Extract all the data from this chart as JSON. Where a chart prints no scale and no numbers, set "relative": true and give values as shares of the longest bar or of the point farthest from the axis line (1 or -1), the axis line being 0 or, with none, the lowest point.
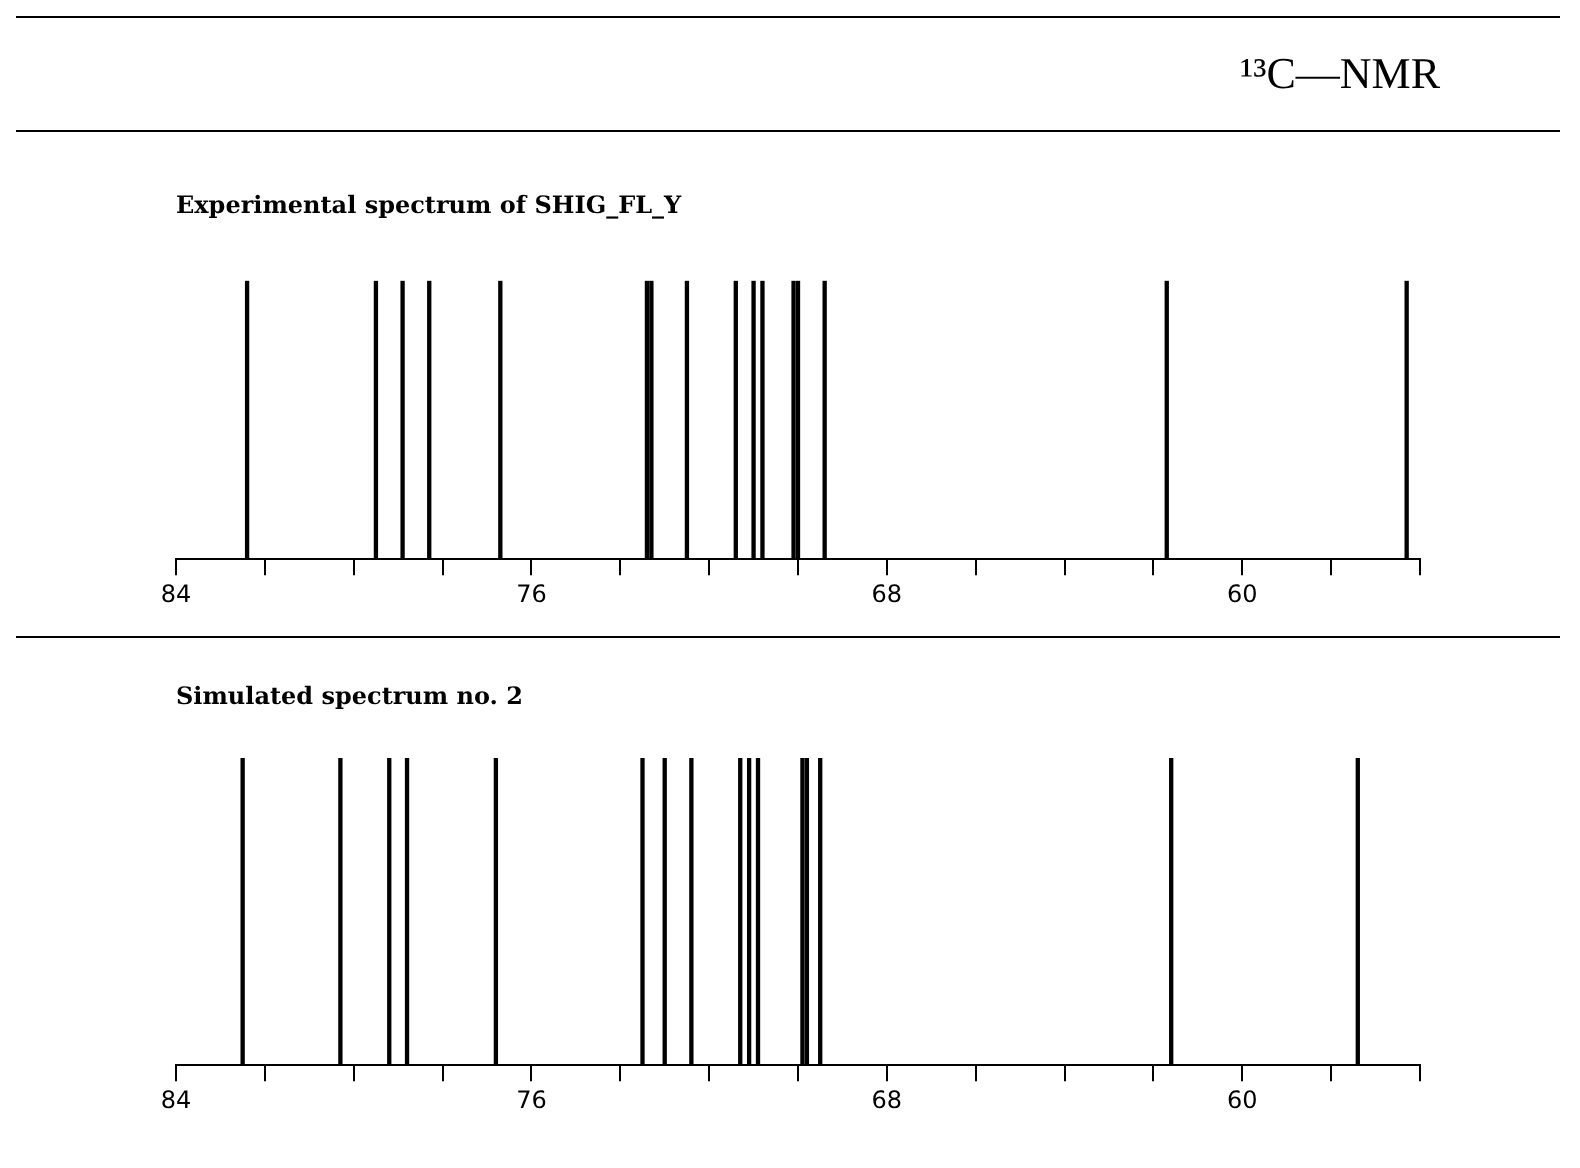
{
  "chart_data": [
    {
      "type": "bar",
      "title": "¹³C—NMR",
      "subtitle": "Experimental spectrum of SHIG_FL_Y",
      "relative": true,
      "color": "#000000",
      "grid": false,
      "legend": false,
      "tick_labels": "x",
      "x": [
        82.4,
        79.5,
        78.9,
        78.3,
        76.7,
        73.4,
        73.3,
        72.5,
        71.4,
        71.0,
        70.8,
        70.1,
        70.0,
        69.4,
        61.7,
        56.3
      ],
      "values": [
        1,
        1,
        1,
        1,
        1,
        1,
        1,
        1,
        1,
        1,
        1,
        1,
        1,
        1,
        1,
        1
      ],
      "xlim": [
        84,
        56
      ],
      "xticks": [
        84,
        {
          "value": 82,
          "label": null
        },
        {
          "value": 80,
          "label": null
        },
        {
          "value": 78,
          "label": null
        },
        76,
        {
          "value": 74,
          "label": null
        },
        {
          "value": 72,
          "label": null
        },
        {
          "value": 70,
          "label": null
        },
        68,
        {
          "value": 66,
          "label": null
        },
        {
          "value": 64,
          "label": null
        },
        {
          "value": 62,
          "label": null
        },
        60,
        {
          "value": 58,
          "label": null
        },
        {
          "value": 56,
          "label": null
        }
      ]
    },
    {
      "type": "bar",
      "title": "Simulated spectrum no. 2",
      "relative": true,
      "color": "#000000",
      "grid": false,
      "legend": false,
      "tick_labels": "x",
      "x": [
        82.5,
        80.3,
        79.2,
        78.8,
        76.8,
        73.5,
        73.0,
        72.4,
        71.3,
        71.1,
        70.9,
        69.9,
        69.8,
        69.5,
        61.6,
        57.4
      ],
      "values": [
        1,
        1,
        1,
        1,
        1,
        1,
        1,
        1,
        1,
        1,
        1,
        1,
        1,
        1,
        1,
        1
      ],
      "xlim": [
        84,
        56
      ],
      "xticks": [
        84,
        {
          "value": 82,
          "label": null
        },
        {
          "value": 80,
          "label": null
        },
        {
          "value": 78,
          "label": null
        },
        76,
        {
          "value": 74,
          "label": null
        },
        {
          "value": 72,
          "label": null
        },
        {
          "value": 70,
          "label": null
        },
        68,
        {
          "value": 66,
          "label": null
        },
        {
          "value": 64,
          "label": null
        },
        {
          "value": 62,
          "label": null
        },
        60,
        {
          "value": 58,
          "label": null
        },
        {
          "value": 56,
          "label": null
        }
      ]
    }
  ]
}
